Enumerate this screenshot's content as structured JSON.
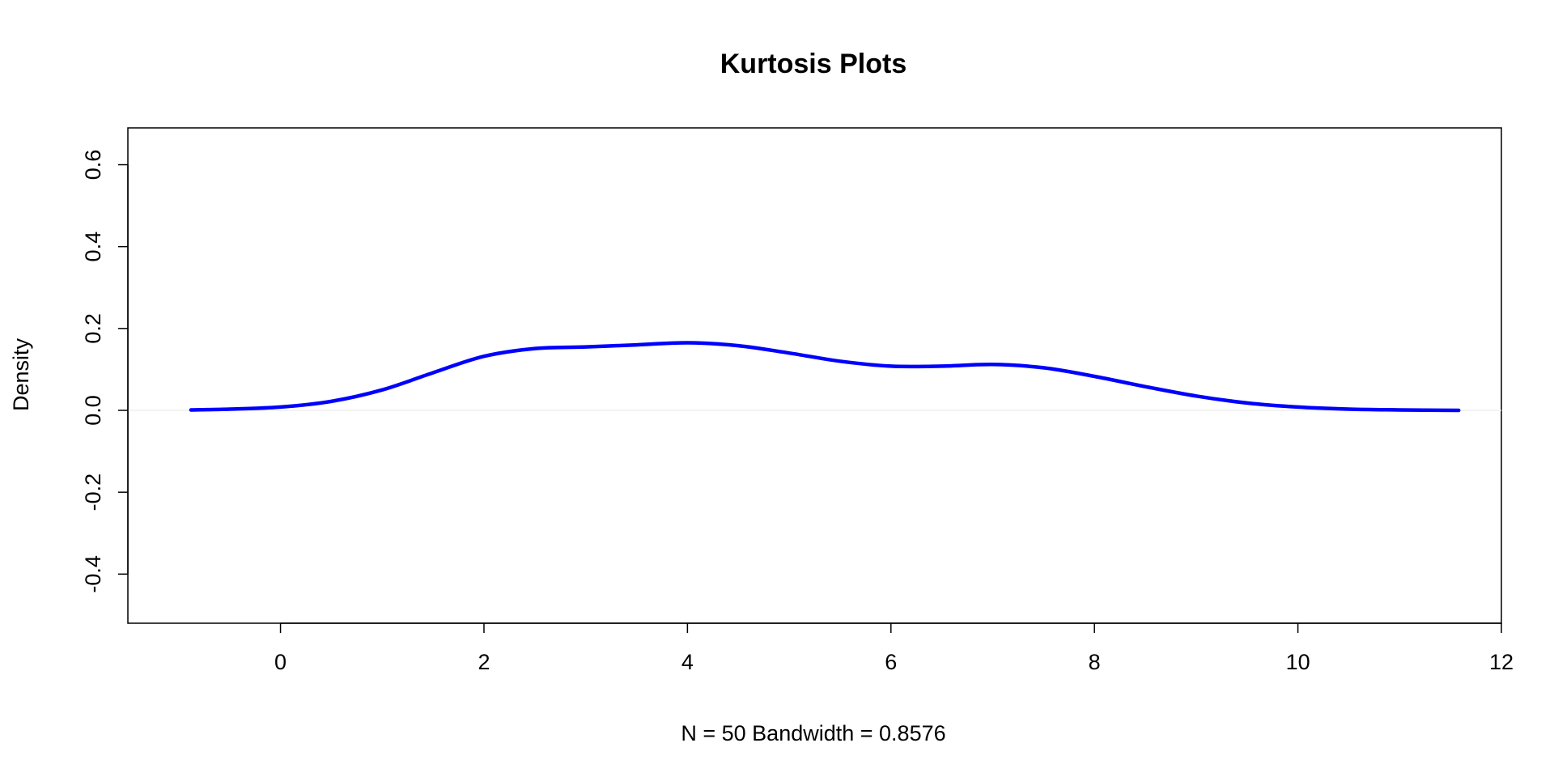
{
  "chart_data": {
    "type": "line",
    "title": "Kurtosis Plots",
    "xlabel": "N = 50   Bandwidth = 0.8576",
    "ylabel": "Density",
    "xlim": [
      -1.5,
      12
    ],
    "ylim": [
      -0.52,
      0.69
    ],
    "x_ticks": [
      "0",
      "2",
      "4",
      "6",
      "8",
      "10",
      "12"
    ],
    "y_ticks": [
      "-0.4",
      "-0.2",
      "0.0",
      "0.2",
      "0.4",
      "0.6"
    ],
    "grid": false,
    "reference_line": {
      "y": 0,
      "color": "#eeeeee"
    },
    "series": [
      {
        "color": "#0000ff",
        "x": [
          -0.88,
          -0.5,
          0,
          0.5,
          1.0,
          1.5,
          2.0,
          2.5,
          3.0,
          3.5,
          4.0,
          4.5,
          5.0,
          5.5,
          6.0,
          6.5,
          7.0,
          7.5,
          8.0,
          8.5,
          9.0,
          9.5,
          10.0,
          10.5,
          11.0,
          11.58
        ],
        "y": [
          0.001,
          0.003,
          0.008,
          0.022,
          0.05,
          0.092,
          0.132,
          0.151,
          0.155,
          0.16,
          0.165,
          0.158,
          0.14,
          0.12,
          0.108,
          0.108,
          0.112,
          0.104,
          0.083,
          0.058,
          0.035,
          0.018,
          0.008,
          0.003,
          0.001,
          0.0
        ]
      }
    ]
  }
}
